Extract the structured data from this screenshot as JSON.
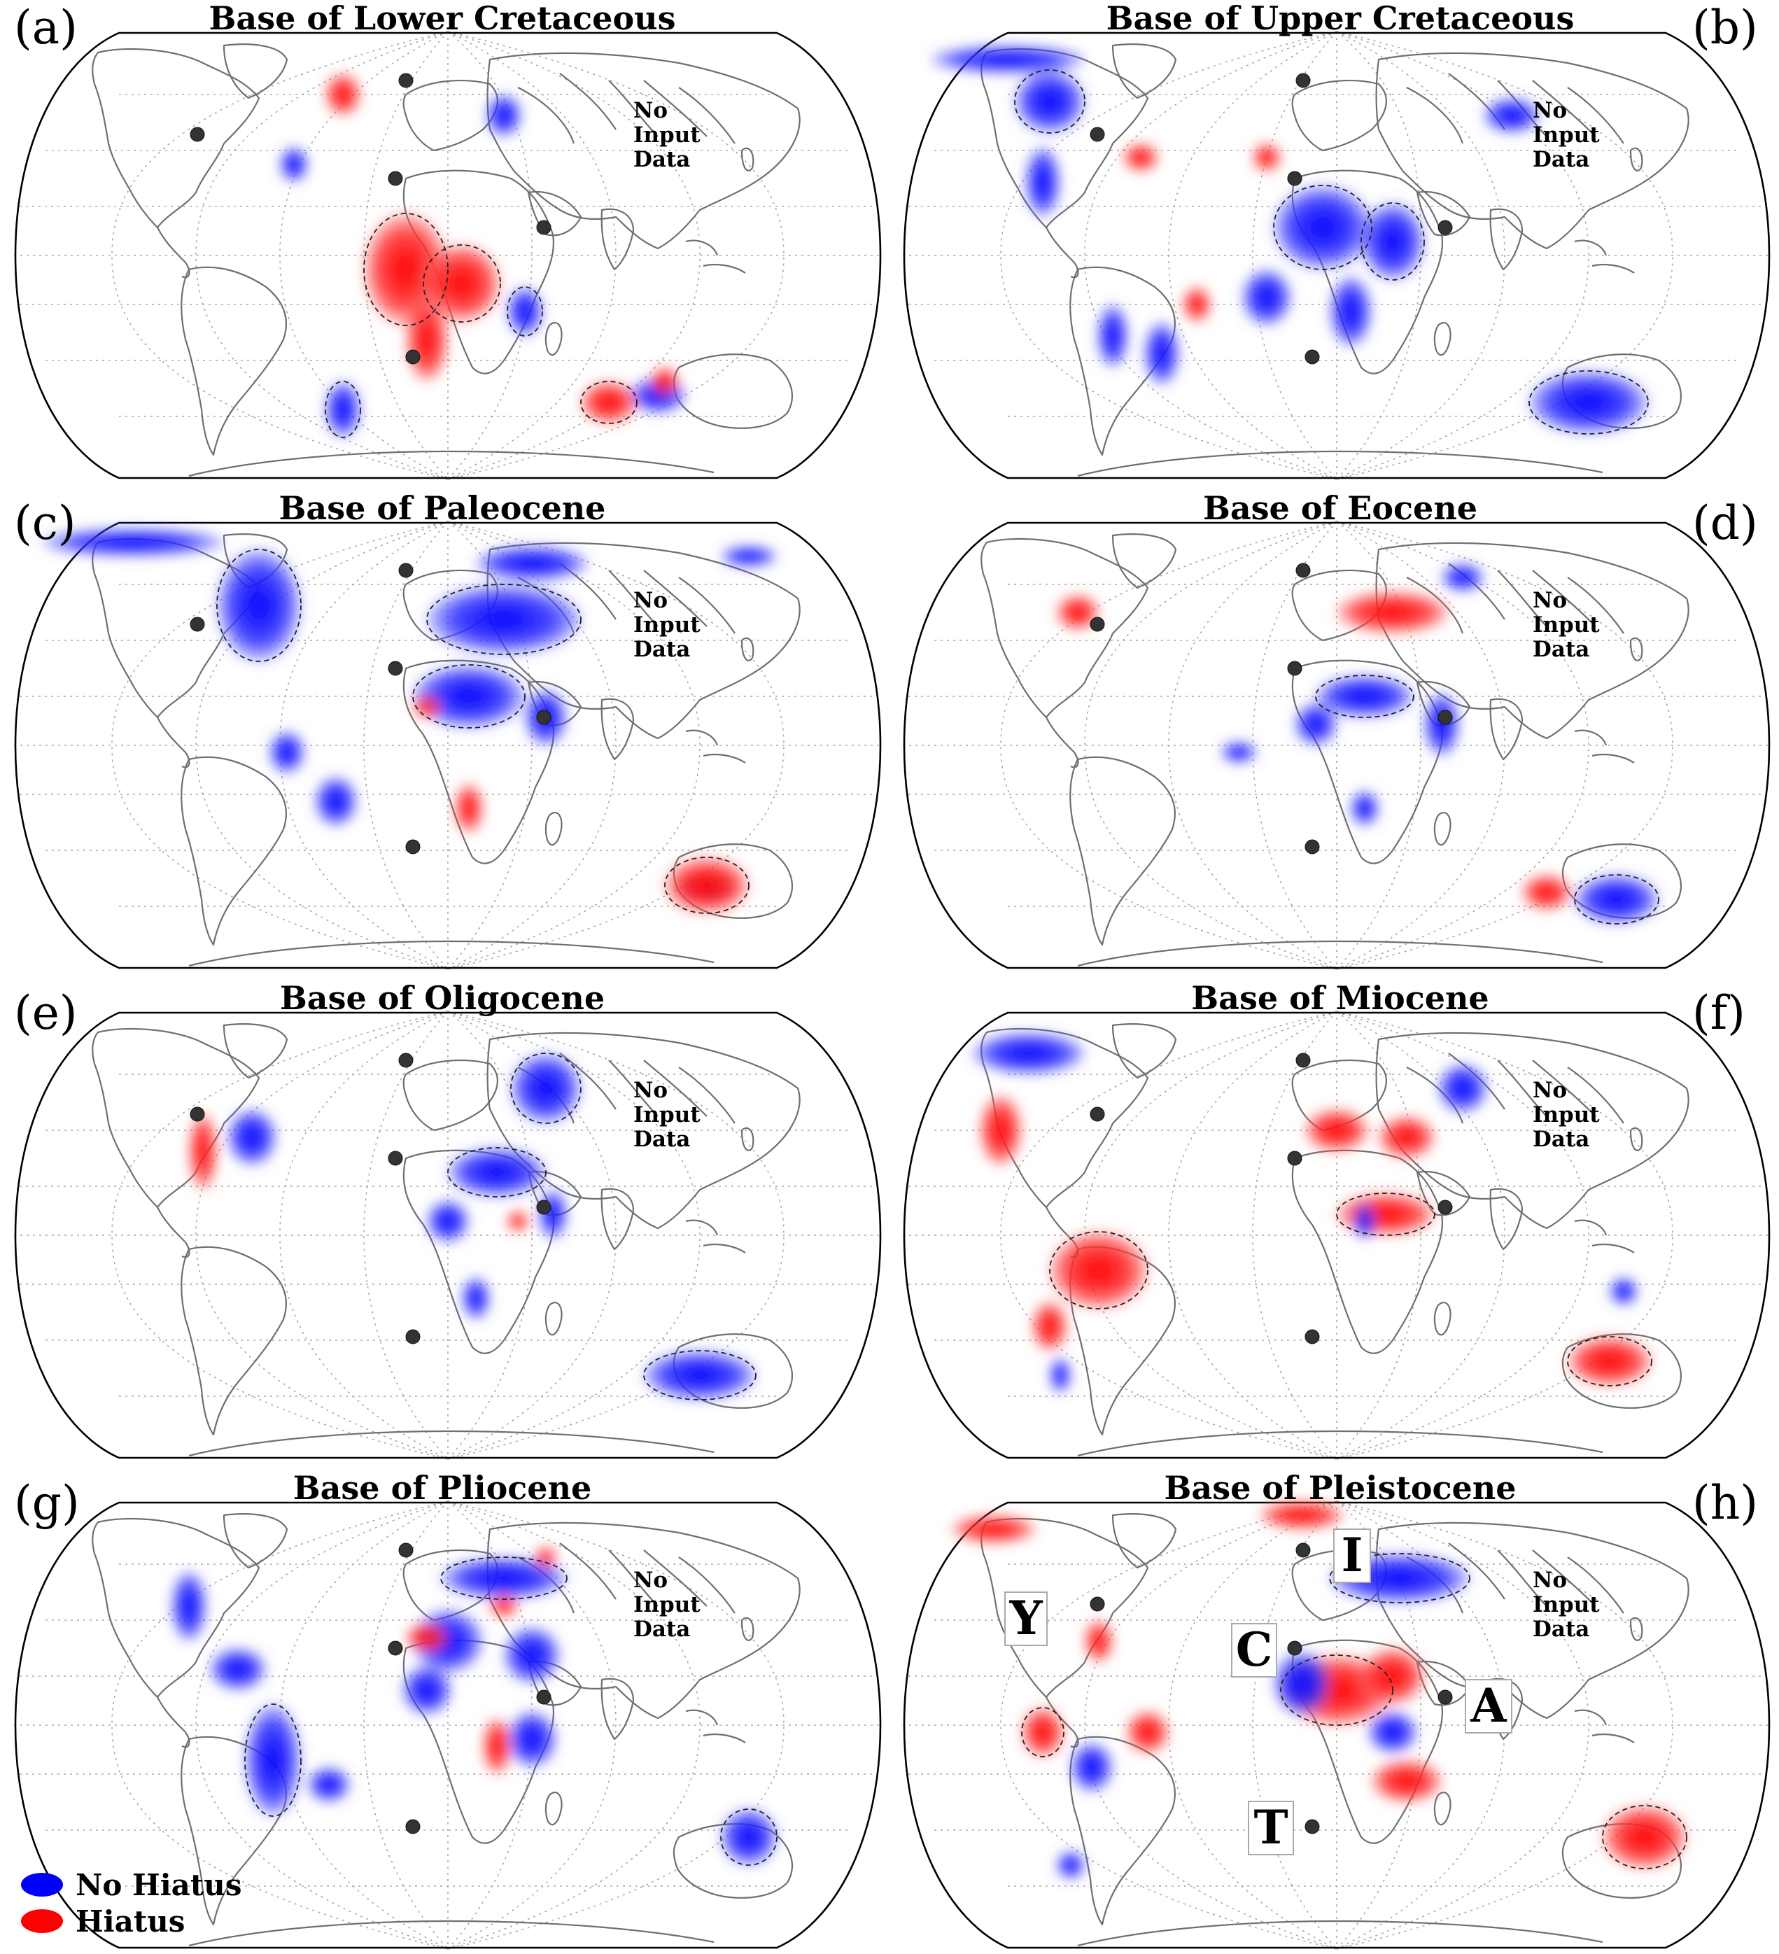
{
  "legend": {
    "items": [
      {
        "label": "No Hiatus",
        "color": "#0000ff"
      },
      {
        "label": "Hiatus",
        "color": "#ff0000"
      }
    ]
  },
  "colors": {
    "no_hiatus": "#0000ff",
    "hiatus": "#ff0000",
    "site": "#333333"
  },
  "panels": [
    {
      "letter": "(a)",
      "title": "Base of Lower Cretaceous",
      "no_input": [
        "No",
        "Input",
        "Data"
      ]
    },
    {
      "letter": "(b)",
      "title": "Base of Upper Cretaceous",
      "no_input": [
        "No",
        "Input",
        "Data"
      ]
    },
    {
      "letter": "(c)",
      "title": "Base of Paleocene",
      "no_input": [
        "No",
        "Input",
        "Data"
      ]
    },
    {
      "letter": "(d)",
      "title": "Base of Eocene",
      "no_input": [
        "No",
        "Input",
        "Data"
      ]
    },
    {
      "letter": "(e)",
      "title": "Base of Oligocene",
      "no_input": [
        "No",
        "Input",
        "Data"
      ]
    },
    {
      "letter": "(f)",
      "title": "Base of Miocene",
      "no_input": [
        "No",
        "Input",
        "Data"
      ]
    },
    {
      "letter": "(g)",
      "title": "Base of Pliocene",
      "no_input": [
        "No",
        "Input",
        "Data"
      ]
    },
    {
      "letter": "(h)",
      "title": "Base of Pleistocene",
      "no_input": [
        "No",
        "Input",
        "Data"
      ]
    }
  ],
  "markers": [
    "Y",
    "I",
    "C",
    "A",
    "T"
  ]
}
